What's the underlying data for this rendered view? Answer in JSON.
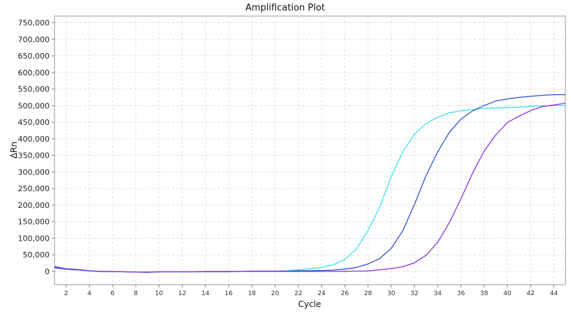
{
  "chart_data": {
    "type": "line",
    "title": "Amplification Plot",
    "xlabel": "Cycle",
    "ylabel": "ΔRn",
    "xlim": [
      1,
      45
    ],
    "ylim": [
      -40000,
      770000
    ],
    "xticks": [
      2,
      4,
      6,
      8,
      10,
      12,
      14,
      16,
      18,
      20,
      22,
      24,
      26,
      28,
      30,
      32,
      34,
      36,
      38,
      40,
      42,
      44
    ],
    "yticks": [
      0,
      50000,
      100000,
      150000,
      200000,
      250000,
      300000,
      350000,
      400000,
      450000,
      500000,
      550000,
      600000,
      650000,
      700000,
      750000
    ],
    "ytick_labels": [
      "0",
      "50,000",
      "100,000",
      "150,000",
      "200,000",
      "250,000",
      "300,000",
      "350,000",
      "400,000",
      "450,000",
      "500,000",
      "550,000",
      "600,000",
      "650,000",
      "700,000",
      "750,000"
    ],
    "grid": true,
    "legend": "none",
    "x": [
      1,
      2,
      3,
      4,
      5,
      6,
      7,
      8,
      9,
      10,
      11,
      12,
      13,
      14,
      15,
      16,
      17,
      18,
      19,
      20,
      21,
      22,
      23,
      24,
      25,
      26,
      27,
      28,
      29,
      30,
      31,
      32,
      33,
      34,
      35,
      36,
      37,
      38,
      39,
      40,
      41,
      42,
      43,
      44,
      45
    ],
    "series": [
      {
        "color": "#3ee0e8",
        "values": [
          10000,
          6000,
          4000,
          1000,
          -1000,
          -1000,
          -1000,
          -2000,
          -2000,
          -1000,
          -1000,
          -1000,
          -1000,
          -1000,
          -1000,
          -1000,
          0,
          0,
          1000,
          1000,
          2000,
          5000,
          8000,
          12000,
          20000,
          36000,
          68000,
          123000,
          194000,
          286000,
          361000,
          414000,
          446000,
          465000,
          478000,
          484000,
          488000,
          492000,
          493000,
          494000,
          495000,
          498000,
          499000,
          500000,
          500000
        ]
      },
      {
        "color": "#2f4fd0",
        "values": [
          15000,
          8000,
          6000,
          2000,
          0,
          0,
          -1000,
          -2000,
          -3000,
          -1000,
          -1000,
          -1000,
          -1000,
          0,
          0,
          0,
          0,
          1000,
          1000,
          1000,
          1000,
          2000,
          2000,
          3000,
          4000,
          7000,
          12000,
          22500,
          38600,
          69500,
          123000,
          202000,
          289000,
          361000,
          419000,
          459000,
          484000,
          500000,
          514000,
          520000,
          525000,
          528000,
          531000,
          533000,
          533000
        ]
      },
      {
        "color": "#9030d8",
        "values": [
          12000,
          7000,
          5000,
          2000,
          0,
          0,
          -1000,
          -2000,
          -2000,
          -1000,
          -1000,
          -1000,
          -1000,
          -1000,
          -1000,
          -1000,
          0,
          0,
          0,
          0,
          0,
          0,
          0,
          0,
          0,
          500,
          1000,
          1500,
          5000,
          8500,
          14000,
          26000,
          48500,
          88000,
          147000,
          219000,
          296000,
          363000,
          411000,
          449000,
          468000,
          485000,
          497000,
          502000,
          507000
        ]
      }
    ]
  }
}
